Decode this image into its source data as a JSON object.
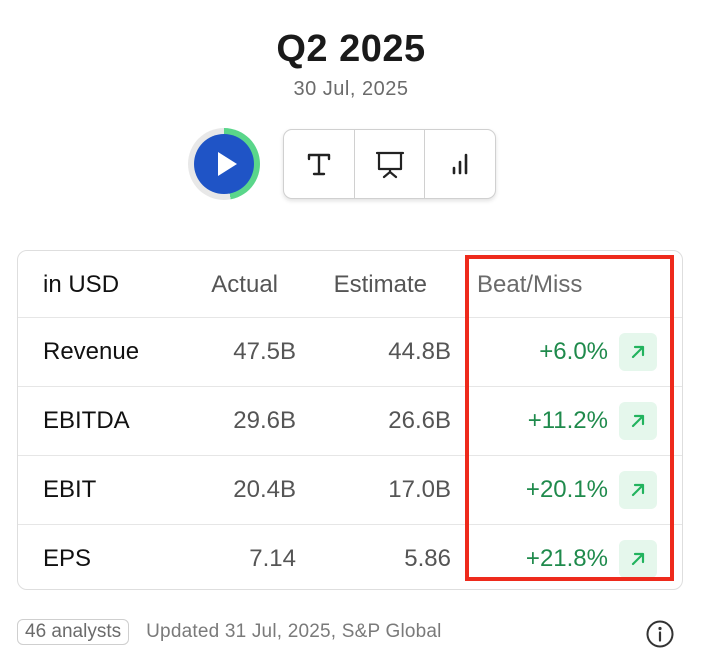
{
  "header": {
    "title": "Q2 2025",
    "date": "30 Jul, 2025"
  },
  "play": {
    "progress": 0.47,
    "ring_color": "#5ad68a",
    "button_color": "#1f54c6"
  },
  "toolbar": {
    "icons": [
      "text-icon",
      "presentation-icon",
      "bar-chart-icon"
    ]
  },
  "table": {
    "headers": {
      "label": "in USD",
      "actual": "Actual",
      "estimate": "Estimate",
      "beat_miss": "Beat/Miss"
    },
    "rows": [
      {
        "label": "Revenue",
        "actual": "47.5B",
        "estimate": "44.8B",
        "beat_miss": "+6.0%"
      },
      {
        "label": "EBITDA",
        "actual": "29.6B",
        "estimate": "26.6B",
        "beat_miss": "+11.2%"
      },
      {
        "label": "EBIT",
        "actual": "20.4B",
        "estimate": "17.0B",
        "beat_miss": "+20.1%"
      },
      {
        "label": "EPS",
        "actual": "7.14",
        "estimate": "5.86",
        "beat_miss": "+21.8%"
      }
    ],
    "positive_color": "#1f8a4c",
    "highlight_color": "#ee2a1c"
  },
  "footer": {
    "analysts": "46 analysts",
    "updated": "Updated 31 Jul, 2025, S&P Global"
  }
}
